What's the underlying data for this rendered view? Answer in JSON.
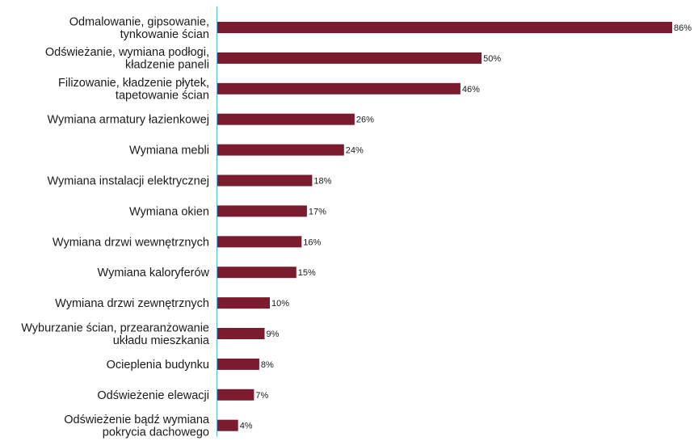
{
  "chart_data": {
    "type": "bar",
    "orientation": "horizontal",
    "categories": [
      [
        "Odmalowanie, gipsowanie,",
        "tynkowanie ścian"
      ],
      [
        "Odświeżanie, wymiana podłogi,",
        "kładzenie paneli"
      ],
      [
        "Filizowanie, kładzenie płytek,",
        "tapetowanie ścian"
      ],
      [
        "Wymiana armatury łazienkowej"
      ],
      [
        "Wymiana mebli"
      ],
      [
        "Wymiana instalacji elektrycznej"
      ],
      [
        "Wymiana okien"
      ],
      [
        "Wymiana drzwi wewnętrznych"
      ],
      [
        "Wymiana kaloryferów"
      ],
      [
        "Wymiana drzwi zewnętrznych"
      ],
      [
        "Wyburzanie ścian, przearanżowanie",
        "układu mieszkania"
      ],
      [
        "Ocieplenia budynku"
      ],
      [
        "Odświeżenie elewacji"
      ],
      [
        "Odświeżenie bądź wymiana",
        "pokrycia dachowego"
      ]
    ],
    "values": [
      86,
      50,
      46,
      26,
      24,
      18,
      17,
      16,
      15,
      10,
      9,
      8,
      7,
      4
    ],
    "value_labels": [
      "86%",
      "50%",
      "46%",
      "26%",
      "24%",
      "18%",
      "17%",
      "16%",
      "15%",
      "10%",
      "9%",
      "8%",
      "7%",
      "4%"
    ],
    "xlim": [
      0,
      86
    ],
    "grid": false,
    "colors": {
      "bar": "#7a1c2e",
      "axis": "#5bb8d6",
      "text": "#1a1a1a"
    }
  }
}
